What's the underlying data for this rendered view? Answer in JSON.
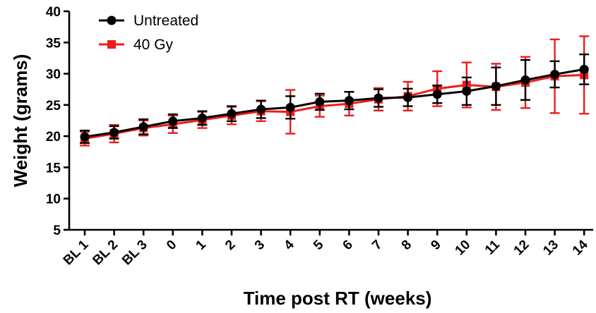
{
  "colors": {
    "untreated": "#000000",
    "treated": "#ee1c1c"
  },
  "chart_data": {
    "type": "line",
    "title": "",
    "xlabel": "Time post RT (weeks)",
    "ylabel": "Weight (grams)",
    "ylim": [
      5,
      40
    ],
    "yticks": [
      5,
      10,
      15,
      20,
      25,
      30,
      35,
      40
    ],
    "categories": [
      "BL 1",
      "BL 2",
      "BL 3",
      "0",
      "1",
      "2",
      "3",
      "4",
      "5",
      "6",
      "7",
      "8",
      "9",
      "10",
      "11",
      "12",
      "13",
      "14"
    ],
    "grid": false,
    "legend_position": "top-left",
    "series": [
      {
        "name": "Untreated",
        "marker": "circle",
        "color": "#000000",
        "values": [
          19.9,
          20.6,
          21.5,
          22.4,
          22.9,
          23.6,
          24.3,
          24.6,
          25.5,
          25.7,
          26.1,
          26.2,
          26.7,
          27.2,
          28.0,
          29.0,
          29.9,
          30.7
        ],
        "errors": [
          1.0,
          1.0,
          1.2,
          1.1,
          1.1,
          1.2,
          1.4,
          1.8,
          1.3,
          1.4,
          1.4,
          1.4,
          1.4,
          2.2,
          3.0,
          3.2,
          2.1,
          2.4
        ]
      },
      {
        "name": "40 Gy",
        "marker": "square",
        "color": "#ee1c1c",
        "values": [
          19.6,
          20.4,
          21.3,
          21.9,
          22.6,
          23.3,
          24.0,
          23.9,
          24.8,
          25.2,
          25.9,
          26.4,
          27.6,
          28.2,
          27.9,
          28.6,
          29.6,
          29.8
        ],
        "errors": [
          1.1,
          1.4,
          1.2,
          1.4,
          1.3,
          1.4,
          1.6,
          3.5,
          1.7,
          1.9,
          1.8,
          2.3,
          2.8,
          3.6,
          3.7,
          4.1,
          5.9,
          6.2
        ]
      }
    ]
  }
}
